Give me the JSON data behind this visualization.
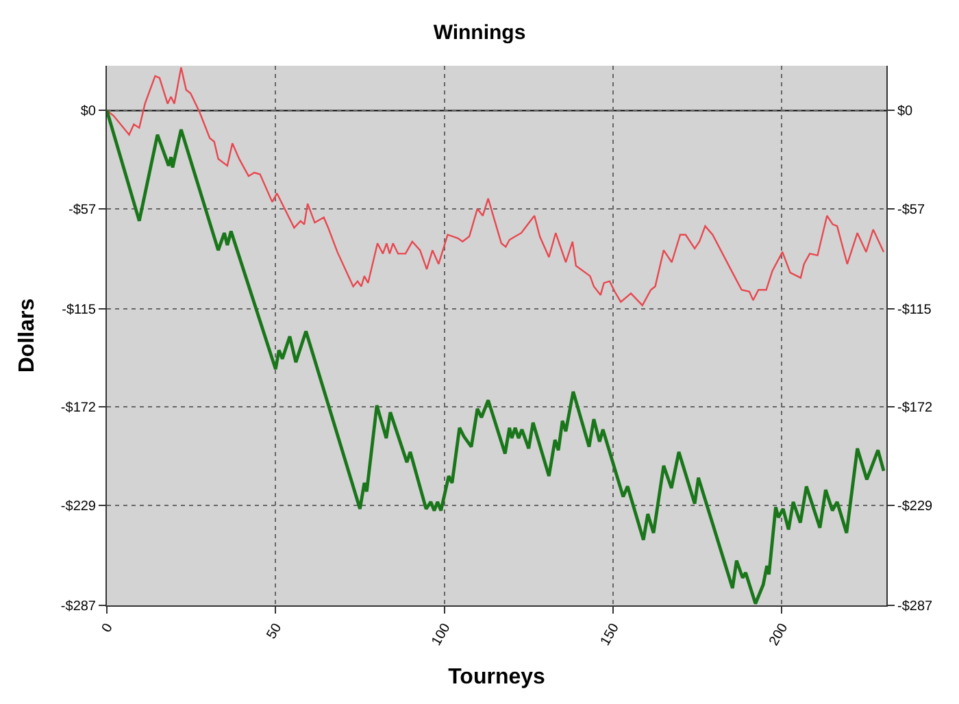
{
  "chart_data": {
    "type": "line",
    "title": "Winnings",
    "xlabel": "Tourneys",
    "ylabel": "Dollars",
    "series": [
      {
        "color": "#e8474f",
        "x": [
          0,
          2,
          6.6,
          8,
          9.6,
          11.3,
          14.3,
          15.6,
          18,
          19,
          20,
          22,
          23.5,
          24.8,
          27.5,
          30.5,
          31.8,
          33,
          35.7,
          37.2,
          39.2,
          42,
          43.7,
          45.4,
          49,
          50.4,
          55.5,
          57.4,
          58.5,
          59.5,
          61.6,
          64.3,
          65.6,
          68.3,
          73,
          74.3,
          75.4,
          76.3,
          77.4,
          80.2,
          81.8,
          82.9,
          83.8,
          84.8,
          86.3,
          88.5,
          90.5,
          92.8,
          94.8,
          96.5,
          98.3,
          101,
          104,
          105.4,
          107.4,
          109.8,
          111.4,
          113,
          114.8,
          116.9,
          118.2,
          119.3,
          121,
          122.8,
          126.7,
          128.3,
          131,
          133,
          136,
          138,
          139,
          143.2,
          144.3,
          146.3,
          147.3,
          149,
          150.5,
          152.3,
          155.3,
          158.7,
          161.2,
          162.5,
          165,
          167.4,
          169.9,
          171.5,
          174.2,
          175.6,
          177.3,
          179.5,
          185.4,
          188.1,
          190.4,
          191.5,
          193.1,
          195.4,
          197.2,
          200.2,
          202.5,
          205.6,
          206.6,
          208.3,
          210.6,
          213.4,
          215.1,
          216.4,
          219.4,
          222.4,
          225,
          227.1,
          230.2
        ],
        "values": [
          0,
          -3,
          -14,
          -8,
          -10,
          4,
          20,
          19,
          4,
          8,
          4,
          25,
          12,
          10,
          -1,
          -16,
          -18,
          -28,
          -32,
          -19,
          -28,
          -38,
          -36,
          -37,
          -53,
          -48,
          -68,
          -64,
          -66,
          -54,
          -65,
          -62,
          -68,
          -82,
          -102,
          -99,
          -102,
          -96,
          -100,
          -77,
          -83,
          -77,
          -83,
          -77,
          -83,
          -83,
          -76,
          -81,
          -92,
          -81,
          -89,
          -72,
          -74,
          -76,
          -73,
          -57,
          -61,
          -51,
          -63,
          -77,
          -79,
          -75,
          -73,
          -71,
          -61,
          -73,
          -85,
          -71,
          -88,
          -76,
          -90,
          -96,
          -102,
          -107,
          -100,
          -99,
          -105,
          -111,
          -106,
          -113,
          -104,
          -102,
          -81,
          -88,
          -72,
          -72,
          -80,
          -76,
          -67,
          -72,
          -94,
          -104,
          -105,
          -110,
          -104,
          -104,
          -93,
          -82,
          -94,
          -97,
          -89,
          -83,
          -84,
          -61,
          -66,
          -67,
          -89,
          -71,
          -82,
          -69,
          -82
        ]
      },
      {
        "color": "#1a761a",
        "x": [
          0,
          9.6,
          15,
          18.3,
          19,
          19.5,
          22,
          33,
          34.8,
          35.7,
          36.8,
          50,
          51,
          52,
          54.2,
          56,
          59,
          75,
          76.3,
          77,
          80,
          82.8,
          84,
          88.9,
          89.9,
          94.6,
          96,
          97,
          98,
          99,
          101.3,
          102.3,
          104.5,
          105.8,
          108,
          109.8,
          111,
          113,
          118,
          119.3,
          120,
          121,
          122,
          123,
          125,
          126.3,
          131,
          132.8,
          133.8,
          135,
          136,
          138.2,
          142.9,
          144.3,
          146,
          147,
          153,
          154.3,
          159,
          160.3,
          162,
          165,
          167.3,
          169.5,
          174.2,
          175.3,
          185.4,
          186.6,
          188.4,
          189.3,
          192.2,
          194.5,
          195.6,
          196.2,
          198.2,
          199,
          200.4,
          202,
          203.4,
          205.5,
          207.3,
          211.3,
          213,
          215,
          216.4,
          219.2,
          222.4,
          225.2,
          228.5,
          230.2
        ],
        "values": [
          0,
          -64,
          -14,
          -32,
          -27,
          -33,
          -11,
          -81,
          -71,
          -78,
          -70,
          -150,
          -139,
          -144,
          -131,
          -146,
          -128,
          -231,
          -216,
          -221,
          -171,
          -190,
          -175,
          -204,
          -198,
          -231,
          -227,
          -232,
          -227,
          -232,
          -212,
          -216,
          -184,
          -189,
          -195,
          -173,
          -178,
          -168,
          -199,
          -184,
          -190,
          -184,
          -190,
          -185,
          -196,
          -181,
          -212,
          -191,
          -197,
          -180,
          -186,
          -163,
          -195,
          -179,
          -192,
          -185,
          -224,
          -218,
          -249,
          -234,
          -245,
          -206,
          -219,
          -198,
          -228,
          -213,
          -277,
          -261,
          -271,
          -268,
          -286,
          -275,
          -264,
          -269,
          -230,
          -236,
          -231,
          -243,
          -227,
          -239,
          -218,
          -242,
          -220,
          -232,
          -227,
          -245,
          -196,
          -214,
          -197,
          -209
        ]
      }
    ],
    "xlim": [
      0,
      231
    ],
    "xticks": [
      0,
      50,
      100,
      150,
      200
    ],
    "ylim": [
      -287,
      26
    ],
    "yticks": [
      {
        "value": 0,
        "label": "$0"
      },
      {
        "value": -57,
        "label": "-$57"
      },
      {
        "value": -115,
        "label": "-$115"
      },
      {
        "value": -172,
        "label": "-$172"
      },
      {
        "value": -229,
        "label": "-$229"
      },
      {
        "value": -287,
        "label": "-$287"
      }
    ],
    "y2lim": [
      -287,
      26
    ],
    "y2ticks": [
      {
        "value": 0,
        "label": "$0"
      },
      {
        "value": -57,
        "label": "-$57"
      },
      {
        "value": -115,
        "label": "-$115"
      },
      {
        "value": -172,
        "label": "-$172"
      },
      {
        "value": -229,
        "label": "-$229"
      },
      {
        "value": -287,
        "label": "-$287"
      }
    ],
    "ref_lines": [
      {
        "axis": "y",
        "value": 0,
        "color": "#000000"
      }
    ],
    "grid": true,
    "marker": "none",
    "line_style": "solid"
  }
}
